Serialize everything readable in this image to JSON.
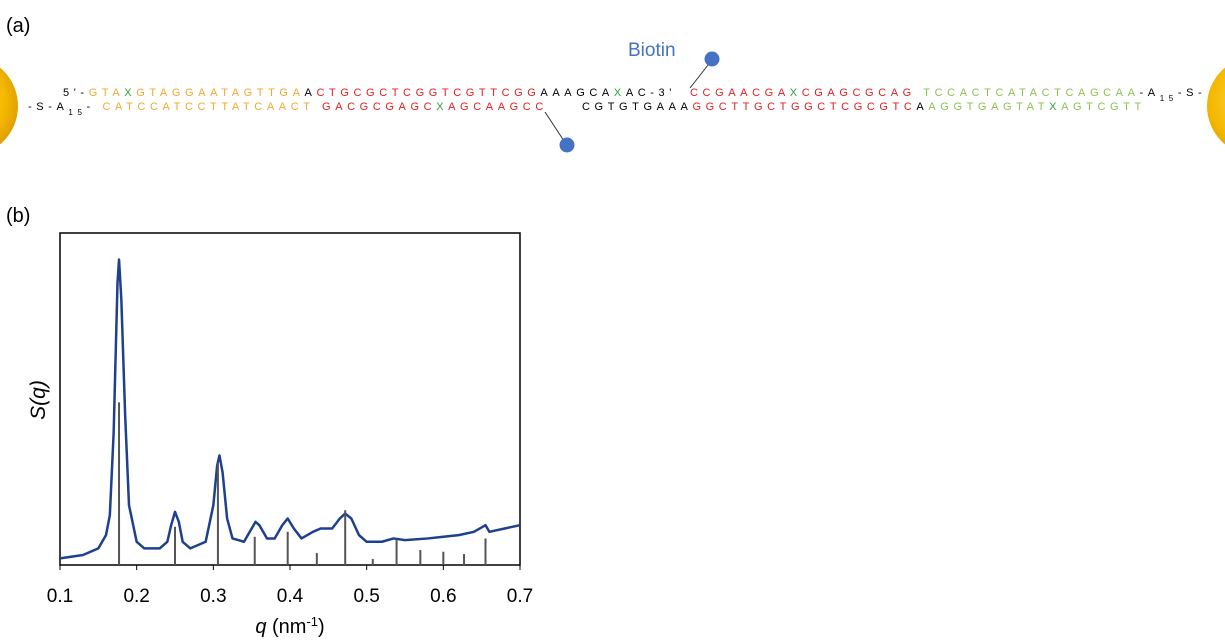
{
  "panel_a": {
    "label": "(a)",
    "biotin": "Biotin",
    "strands": [
      {
        "segments": [
          {
            "text": "5'-",
            "color": "#000000"
          },
          {
            "text": "GTA",
            "color": "#f0a830"
          },
          {
            "text": "X",
            "color": "#2e9e3e"
          },
          {
            "text": "GTAGGAATAGTTGA",
            "color": "#f0a830"
          },
          {
            "text": "A",
            "color": "#000000"
          },
          {
            "text": "CTGCGCTCGGTCGTTCGG",
            "color": "#e02020"
          },
          {
            "text": "AAAGCA",
            "color": "#000000"
          },
          {
            "text": "X",
            "color": "#2e9e3e"
          },
          {
            "text": "AC-3'",
            "color": "#000000"
          }
        ]
      },
      {
        "segments": [
          {
            "text": "CCGAACGA",
            "color": "#e02020"
          },
          {
            "text": "X",
            "color": "#2e9e3e"
          },
          {
            "text": "CGAGCGCAG ",
            "color": "#e02020"
          },
          {
            "text": "TCCACTCATACTCAGCAA",
            "color": "#8cc152"
          },
          {
            "text": "-A",
            "color": "#000000"
          },
          {
            "text": "15",
            "color": "#000000",
            "sub": true
          },
          {
            "text": "-S-",
            "color": "#000000"
          }
        ]
      },
      {
        "segments": [
          {
            "text": "-S-A",
            "color": "#000000"
          },
          {
            "text": "15",
            "color": "#000000",
            "sub": true
          },
          {
            "text": "- ",
            "color": "#000000"
          },
          {
            "text": "CATCCATCCTTATCAACT ",
            "color": "#f0a830"
          },
          {
            "text": "GACGCGAGC",
            "color": "#e02020"
          },
          {
            "text": "X",
            "color": "#2e9e3e"
          },
          {
            "text": "AGCAAGCC",
            "color": "#e02020"
          }
        ]
      },
      {
        "segments": [
          {
            "text": "CGTGTGAAA",
            "color": "#000000"
          },
          {
            "text": "GGCTTGCTGGCTCGCGTC",
            "color": "#e02020"
          },
          {
            "text": "A",
            "color": "#000000"
          },
          {
            "text": "AGGTGAGTAT",
            "color": "#8cc152"
          },
          {
            "text": "X",
            "color": "#2e9e3e"
          },
          {
            "text": "AGTCGTT",
            "color": "#8cc152"
          }
        ]
      }
    ]
  },
  "panel_b_label": "(b)",
  "chart_data": {
    "type": "line",
    "ylabel": "S(q)",
    "xlabel": {
      "var": "q",
      "unit": " (nm",
      "sup": "-1",
      "close": ")"
    },
    "xlim": [
      0.1,
      0.7
    ],
    "ylim": [
      0,
      1
    ],
    "xticks": [
      0.1,
      0.2,
      0.3,
      0.4,
      0.5,
      0.6,
      0.7
    ],
    "series": [
      {
        "style": "line",
        "color": "#1f3f8f",
        "x": [
          0.1,
          0.13,
          0.15,
          0.16,
          0.165,
          0.17,
          0.175,
          0.177,
          0.18,
          0.185,
          0.19,
          0.2,
          0.21,
          0.23,
          0.24,
          0.245,
          0.25,
          0.255,
          0.26,
          0.27,
          0.29,
          0.3,
          0.305,
          0.308,
          0.312,
          0.318,
          0.325,
          0.34,
          0.35,
          0.355,
          0.36,
          0.37,
          0.38,
          0.39,
          0.397,
          0.405,
          0.415,
          0.43,
          0.44,
          0.455,
          0.465,
          0.472,
          0.48,
          0.49,
          0.5,
          0.52,
          0.535,
          0.55,
          0.58,
          0.6,
          0.62,
          0.64,
          0.655,
          0.66,
          0.68,
          0.7
        ],
        "values": [
          0.02,
          0.03,
          0.05,
          0.09,
          0.15,
          0.4,
          0.85,
          0.92,
          0.8,
          0.45,
          0.18,
          0.07,
          0.05,
          0.05,
          0.07,
          0.12,
          0.16,
          0.13,
          0.07,
          0.05,
          0.07,
          0.18,
          0.3,
          0.33,
          0.28,
          0.14,
          0.08,
          0.07,
          0.11,
          0.13,
          0.12,
          0.08,
          0.08,
          0.12,
          0.14,
          0.11,
          0.08,
          0.1,
          0.11,
          0.11,
          0.14,
          0.155,
          0.14,
          0.09,
          0.07,
          0.07,
          0.08,
          0.075,
          0.08,
          0.085,
          0.09,
          0.1,
          0.12,
          0.1,
          0.11,
          0.12
        ]
      },
      {
        "style": "stem",
        "color": "#555555",
        "x": [
          0.177,
          0.25,
          0.306,
          0.354,
          0.397,
          0.435,
          0.472,
          0.508,
          0.539,
          0.57,
          0.6,
          0.627,
          0.655
        ],
        "values": [
          0.49,
          0.115,
          0.31,
          0.085,
          0.1,
          0.036,
          0.165,
          0.018,
          0.075,
          0.045,
          0.04,
          0.033,
          0.08
        ]
      }
    ]
  }
}
